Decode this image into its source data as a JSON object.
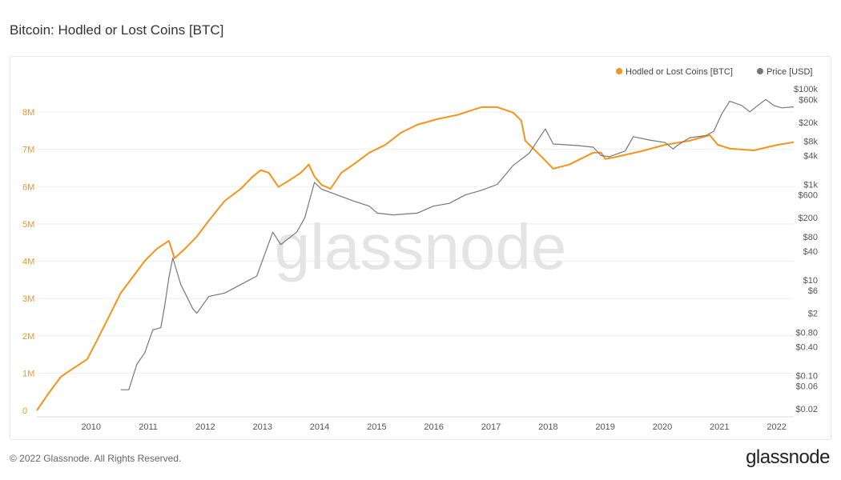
{
  "title": "Bitcoin: Hodled or Lost Coins [BTC]",
  "footer": "© 2022 Glassnode. All Rights Reserved.",
  "brand": "glassnode",
  "watermark": "glassnode",
  "chart_data": {
    "type": "line",
    "title": "Bitcoin: Hodled or Lost Coins [BTC]",
    "legend_placement": "top-right",
    "grid": true,
    "x_ticks": [
      "2010",
      "2011",
      "2012",
      "2013",
      "2014",
      "2015",
      "2016",
      "2017",
      "2018",
      "2019",
      "2020",
      "2021",
      "2022"
    ],
    "xlim": [
      2009.05,
      2022.3
    ],
    "y_left": {
      "ticks": [
        "0",
        "1M",
        "2M",
        "3M",
        "4M",
        "5M",
        "6M",
        "7M",
        "8M"
      ],
      "lim": [
        0,
        8000000
      ],
      "color": "#f7931a"
    },
    "y_right": {
      "scale": "log",
      "ticks": [
        "$0.02",
        "$0.06",
        "$0.10",
        "$0.40",
        "$0.80",
        "$2",
        "$6",
        "$10",
        "$40",
        "$80",
        "$200",
        "$600",
        "$1k",
        "$4k",
        "$8k",
        "$20k",
        "$60k",
        "$100k"
      ],
      "tick_values": [
        0.02,
        0.06,
        0.1,
        0.4,
        0.8,
        2,
        6,
        10,
        40,
        80,
        200,
        600,
        1000,
        4000,
        8000,
        20000,
        60000,
        100000
      ],
      "lim": [
        0.02,
        100000
      ]
    },
    "series": [
      {
        "name": "Hodled or Lost Coins [BTC]",
        "axis": "left",
        "color": "#f7931a",
        "x": [
          2009.05,
          2009.26,
          2009.47,
          2009.68,
          2009.93,
          2010.1,
          2010.31,
          2010.52,
          2010.73,
          2010.94,
          2011.15,
          2011.36,
          2011.46,
          2011.64,
          2011.85,
          2012.06,
          2012.34,
          2012.62,
          2012.83,
          2012.97,
          2013.11,
          2013.28,
          2013.46,
          2013.67,
          2013.81,
          2013.91,
          2014.03,
          2014.19,
          2014.38,
          2014.59,
          2014.87,
          2015.15,
          2015.43,
          2015.71,
          2016.06,
          2016.41,
          2016.83,
          2017.11,
          2017.39,
          2017.53,
          2017.6,
          2017.74,
          2017.95,
          2018.09,
          2018.37,
          2018.79,
          2018.93,
          2019.0,
          2019.21,
          2019.63,
          2020.05,
          2020.48,
          2020.83,
          2020.97,
          2021.18,
          2021.6,
          2022.02,
          2022.3
        ],
        "y": [
          0,
          470000,
          900000,
          1120000,
          1370000,
          1870000,
          2510000,
          3150000,
          3580000,
          4010000,
          4330000,
          4550000,
          4080000,
          4330000,
          4660000,
          5090000,
          5620000,
          5940000,
          6270000,
          6440000,
          6370000,
          5990000,
          6160000,
          6370000,
          6590000,
          6270000,
          6050000,
          5940000,
          6370000,
          6590000,
          6910000,
          7120000,
          7450000,
          7660000,
          7810000,
          7920000,
          8130000,
          8130000,
          7980000,
          7770000,
          7230000,
          7020000,
          6700000,
          6480000,
          6590000,
          6910000,
          6910000,
          6740000,
          6800000,
          6950000,
          7120000,
          7230000,
          7380000,
          7120000,
          7020000,
          6970000,
          7120000,
          7190000
        ]
      },
      {
        "name": "Price [USD]",
        "axis": "right",
        "color": "#777777",
        "x": [
          2010.52,
          2010.66,
          2010.8,
          2010.94,
          2011.08,
          2011.22,
          2011.29,
          2011.36,
          2011.43,
          2011.57,
          2011.78,
          2011.85,
          2012.06,
          2012.34,
          2012.62,
          2012.9,
          2013.18,
          2013.32,
          2013.6,
          2013.74,
          2013.91,
          2014.03,
          2014.31,
          2014.59,
          2014.87,
          2015.01,
          2015.29,
          2015.71,
          2015.99,
          2016.27,
          2016.55,
          2016.83,
          2017.11,
          2017.39,
          2017.67,
          2017.95,
          2018.09,
          2018.51,
          2018.79,
          2018.93,
          2019.07,
          2019.35,
          2019.49,
          2019.77,
          2020.05,
          2020.19,
          2020.26,
          2020.48,
          2020.76,
          2020.9,
          2021.04,
          2021.18,
          2021.39,
          2021.53,
          2021.67,
          2021.81,
          2021.95,
          2022.09,
          2022.3
        ],
        "y": [
          0.05,
          0.05,
          0.17,
          0.3,
          0.9,
          1.0,
          3,
          11,
          29,
          8,
          2.5,
          2,
          4.5,
          5.3,
          8,
          12,
          100,
          55,
          100,
          200,
          1100,
          800,
          600,
          450,
          350,
          250,
          230,
          250,
          350,
          400,
          600,
          750,
          1000,
          2500,
          4500,
          14500,
          7000,
          6500,
          6000,
          4000,
          3800,
          5000,
          10000,
          8500,
          7500,
          5500,
          6500,
          9500,
          10500,
          13000,
          30000,
          55000,
          45000,
          33000,
          45000,
          60000,
          45000,
          40000,
          42000
        ]
      }
    ]
  }
}
